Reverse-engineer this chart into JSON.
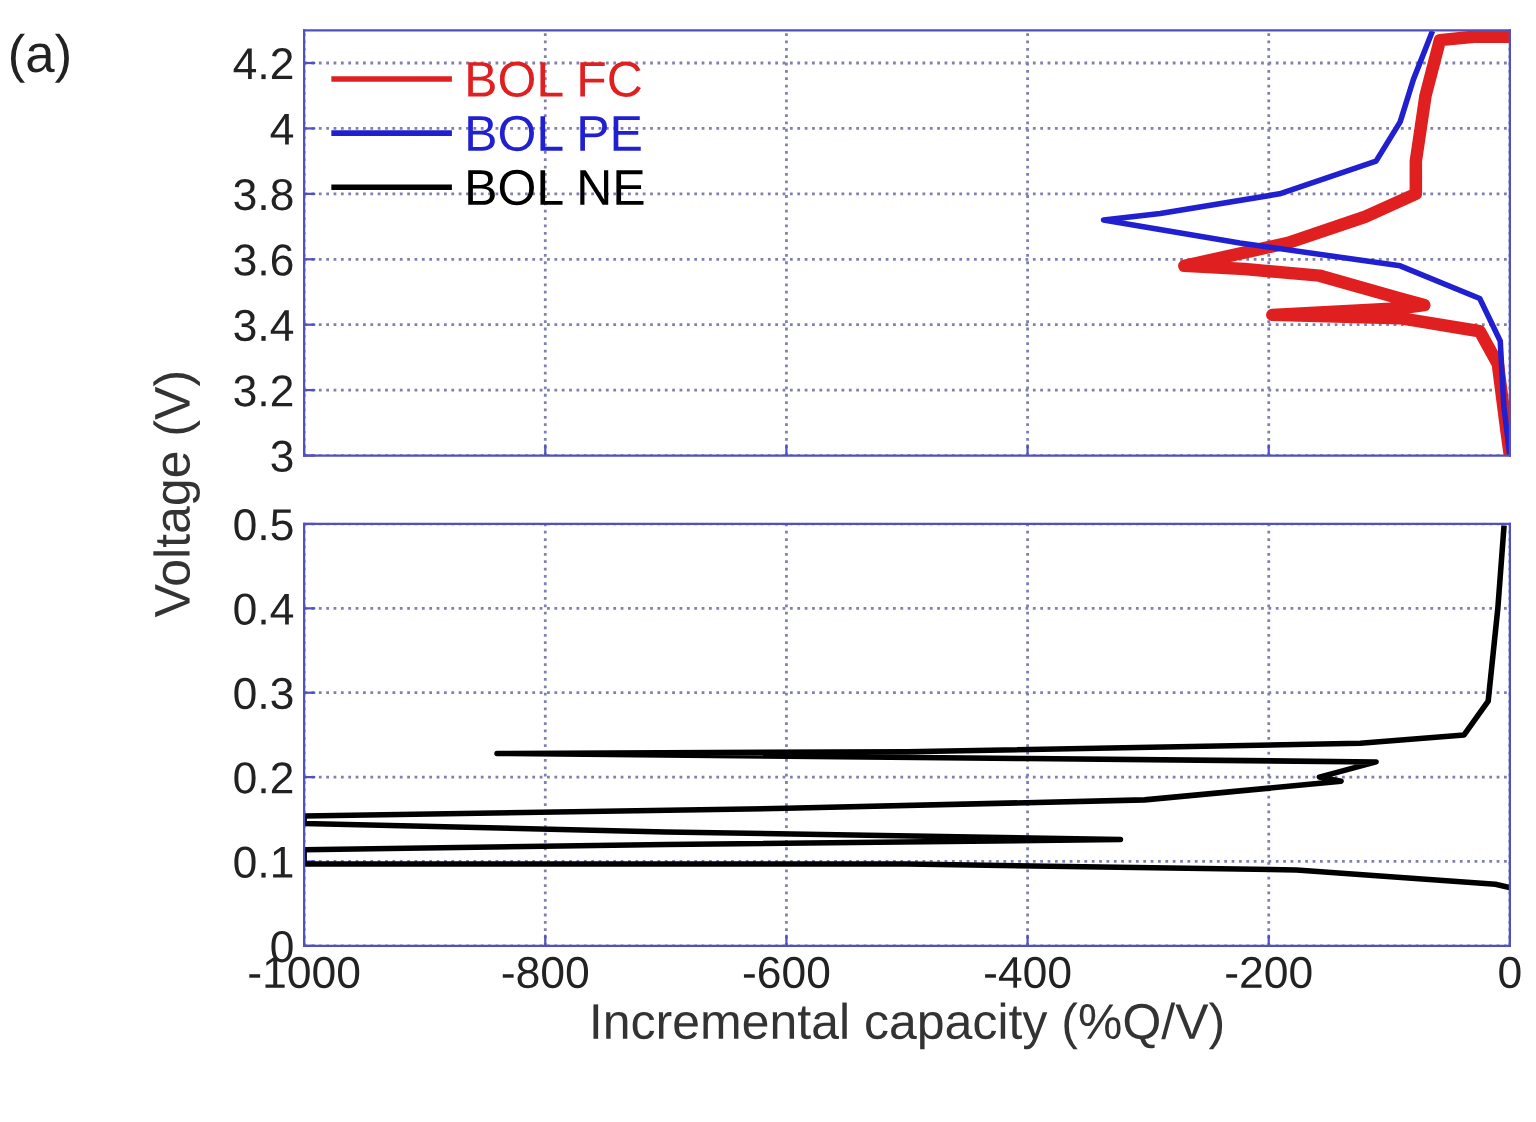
{
  "chart_data": [
    {
      "type": "line",
      "ylabel": "Voltage (V)",
      "annotations": [
        "(a)"
      ],
      "xlim": [
        -1000,
        0
      ],
      "xticks": [
        -1000,
        -800,
        -600,
        -400,
        -200,
        0
      ],
      "ylim": [
        3,
        4.3
      ],
      "yticks": [
        3,
        3.2,
        3.4,
        3.6,
        3.8,
        4,
        4.2
      ],
      "grid": true,
      "legend": "top left",
      "tick_labels": "y",
      "line_style": "solid",
      "series": [
        {
          "name": "BOL FC",
          "color": "#e02020",
          "x": [
            0,
            -30,
            -58,
            -70,
            -78,
            -78,
            -120,
            -184,
            -270,
            -220,
            -158,
            -91,
            -71,
            -91,
            -197,
            -91,
            -25,
            -10,
            -3,
            0
          ],
          "values": [
            4.28,
            4.28,
            4.27,
            4.1,
            3.9,
            3.8,
            3.73,
            3.65,
            3.58,
            3.57,
            3.55,
            3.48,
            3.46,
            3.45,
            3.43,
            3.42,
            3.38,
            3.28,
            3.08,
            3.0
          ]
        },
        {
          "name": "BOL PE",
          "color": "#2020d0",
          "x": [
            -65,
            -80,
            -91,
            -111,
            -191,
            -290,
            -337,
            -224,
            -91,
            -25,
            -8,
            -5,
            0
          ],
          "values": [
            4.29,
            4.15,
            4.02,
            3.9,
            3.8,
            3.74,
            3.72,
            3.65,
            3.58,
            3.48,
            3.35,
            3.15,
            3.0
          ]
        }
      ]
    },
    {
      "type": "line",
      "xlabel": "Incremental capacity (%Q/V)",
      "xlim": [
        -1000,
        0
      ],
      "xticks": [
        -1000,
        -800,
        -600,
        -400,
        -200,
        0
      ],
      "ylim": [
        0,
        0.5
      ],
      "yticks": [
        0,
        0.1,
        0.2,
        0.3,
        0.4,
        0.5
      ],
      "grid": true,
      "line_style": "solid",
      "series": [
        {
          "name": "BOL NE",
          "color": "#000000",
          "x": [
            -5,
            -10,
            -18,
            -38,
            -124,
            -500,
            -840,
            -400,
            -111,
            -158,
            -140,
            -303,
            -600,
            -1000,
            -1000,
            -700,
            -323,
            -700,
            -1000,
            -1000,
            -500,
            -177,
            -12,
            0
          ],
          "values": [
            0.495,
            0.4,
            0.29,
            0.25,
            0.24,
            0.23,
            0.228,
            0.222,
            0.218,
            0.2,
            0.195,
            0.173,
            0.163,
            0.154,
            0.145,
            0.135,
            0.126,
            0.12,
            0.114,
            0.097,
            0.097,
            0.09,
            0.073,
            0.069
          ]
        }
      ]
    }
  ]
}
